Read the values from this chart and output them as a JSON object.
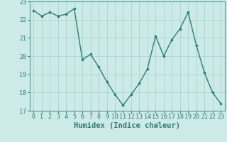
{
  "x": [
    0,
    1,
    2,
    3,
    4,
    5,
    6,
    7,
    8,
    9,
    10,
    11,
    12,
    13,
    14,
    15,
    16,
    17,
    18,
    19,
    20,
    21,
    22,
    23
  ],
  "y": [
    22.5,
    22.2,
    22.4,
    22.2,
    22.3,
    22.6,
    19.8,
    20.1,
    19.4,
    18.6,
    17.9,
    17.3,
    17.9,
    18.5,
    19.3,
    21.1,
    20.0,
    20.9,
    21.5,
    22.4,
    20.6,
    19.1,
    18.0,
    17.4
  ],
  "line_color": "#2e7d6e",
  "marker": "D",
  "marker_size": 1.8,
  "bg_color": "#cceae7",
  "grid_color": "#aad4d0",
  "xlabel": "Humidex (Indice chaleur)",
  "ylim": [
    17,
    23
  ],
  "xlim": [
    -0.5,
    23.5
  ],
  "yticks": [
    17,
    18,
    19,
    20,
    21,
    22,
    23
  ],
  "xticks": [
    0,
    1,
    2,
    3,
    4,
    5,
    6,
    7,
    8,
    9,
    10,
    11,
    12,
    13,
    14,
    15,
    16,
    17,
    18,
    19,
    20,
    21,
    22,
    23
  ],
  "xlabel_fontsize": 7.5,
  "tick_fontsize": 6,
  "line_width": 1.0,
  "spine_color": "#5a9a94"
}
